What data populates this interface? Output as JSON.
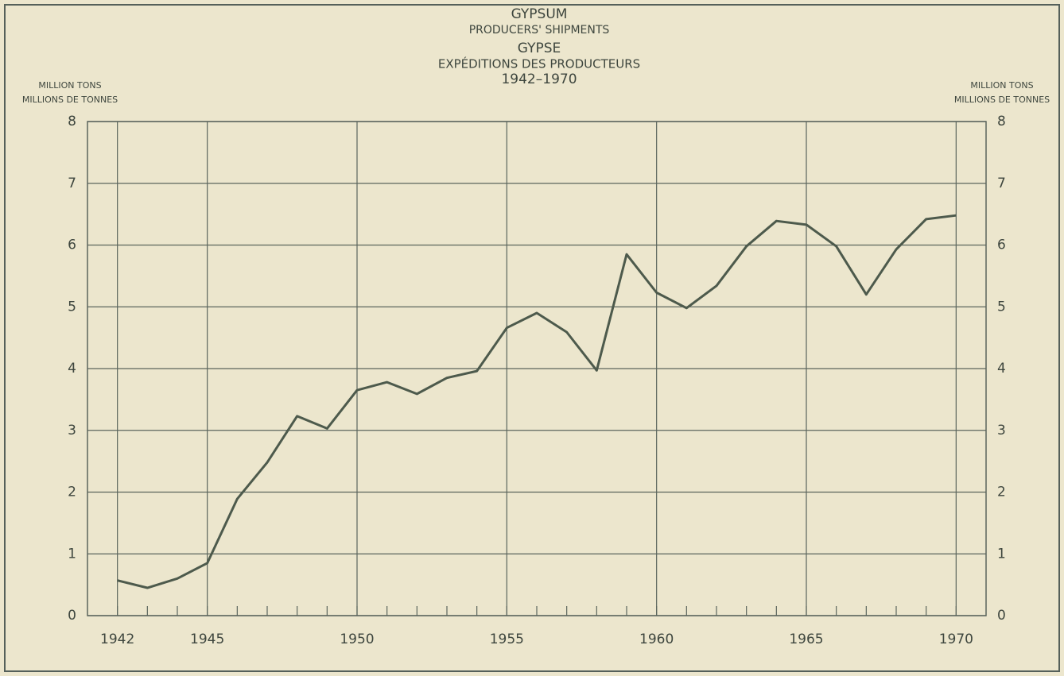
{
  "chart_data": {
    "type": "line",
    "title": [
      "GYPSUM",
      "PRODUCERS' SHIPMENTS",
      "GYPSE",
      "EXPÉDITIONS DES PRODUCTEURS",
      "1942–1970"
    ],
    "ylabel": [
      "MILLION TONS",
      "MILLIONS DE TONNES"
    ],
    "y2label": [
      "MILLION TONS",
      "MILLIONS DE TONNES"
    ],
    "x": [
      1942,
      1943,
      1944,
      1945,
      1946,
      1947,
      1948,
      1949,
      1950,
      1951,
      1952,
      1953,
      1954,
      1955,
      1956,
      1957,
      1958,
      1959,
      1960,
      1961,
      1962,
      1963,
      1964,
      1965,
      1966,
      1967,
      1968,
      1969,
      1970
    ],
    "series": [
      {
        "name": "Producers' shipments",
        "color": "#4d5a4c",
        "values": [
          0.57,
          0.45,
          0.6,
          0.85,
          1.89,
          2.48,
          3.23,
          3.03,
          3.65,
          3.78,
          3.59,
          3.85,
          3.96,
          4.66,
          4.9,
          4.59,
          3.97,
          5.85,
          5.23,
          4.98,
          5.34,
          5.98,
          6.39,
          6.33,
          5.98,
          5.2,
          5.93,
          6.42,
          6.48
        ]
      }
    ],
    "xlim": [
      1941,
      1971
    ],
    "xticks": [
      1942,
      1945,
      1950,
      1955,
      1960,
      1965,
      1970
    ],
    "ylim": [
      0,
      8
    ],
    "yticks": [
      0,
      1,
      2,
      3,
      4,
      5,
      6,
      7,
      8
    ],
    "y2lim": [
      0,
      8
    ],
    "y2ticks": [
      0,
      1,
      2,
      3,
      4,
      5,
      6,
      7,
      8
    ],
    "grid": true
  }
}
